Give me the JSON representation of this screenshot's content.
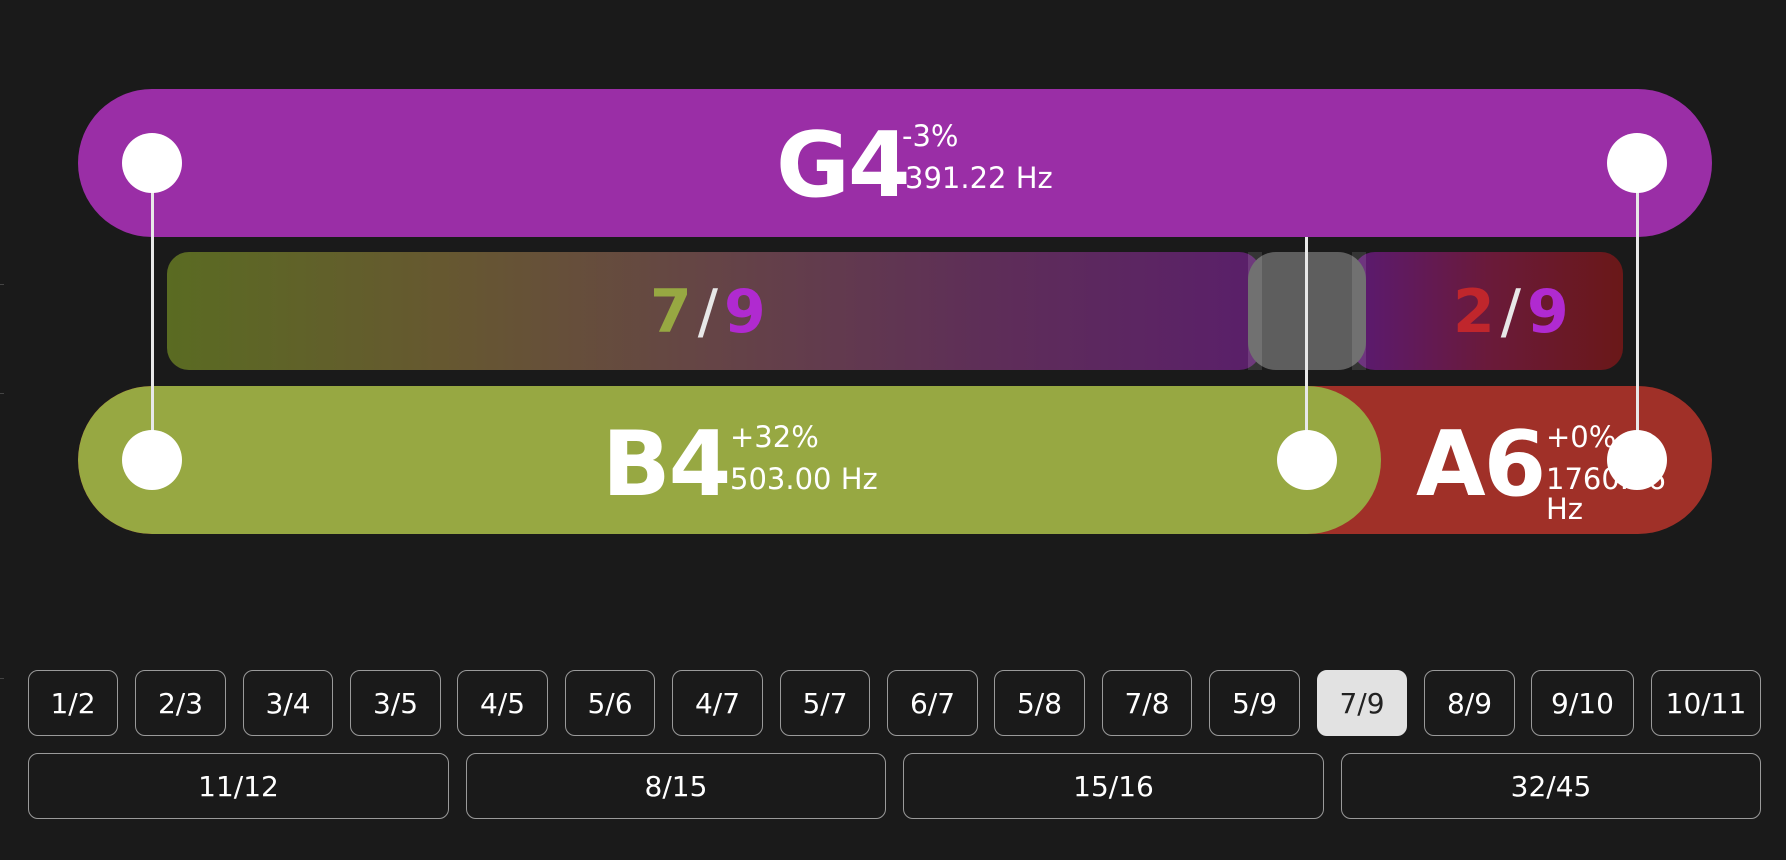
{
  "top_note": {
    "name": "G4",
    "deviation": "-3%",
    "frequency": "391.22 Hz",
    "color": "#9a2ea6"
  },
  "bottom_notes": [
    {
      "name": "B4",
      "deviation": "+32%",
      "frequency": "503.00 Hz",
      "color": "#97a842"
    },
    {
      "name": "A6",
      "deviation": "+0%",
      "frequency": "1760.46 Hz",
      "color": "#a03028"
    }
  ],
  "ratio_bars": [
    {
      "numerator": "7",
      "slash": "/",
      "denominator": "9",
      "numerator_color": "#97a842",
      "denominator_color": "#b02ad0"
    },
    {
      "numerator": "2",
      "slash": "/",
      "denominator": "9",
      "numerator_color": "#c0262c",
      "denominator_color": "#b02ad0"
    }
  ],
  "ratio_buttons_row1": [
    "1/2",
    "2/3",
    "3/4",
    "3/5",
    "4/5",
    "5/6",
    "4/7",
    "5/7",
    "6/7",
    "5/8",
    "7/8",
    "5/9",
    "7/9",
    "8/9",
    "9/10",
    "10/11"
  ],
  "ratio_buttons_row2": [
    "11/12",
    "8/15",
    "15/16",
    "32/45"
  ],
  "selected_ratio": "7/9"
}
